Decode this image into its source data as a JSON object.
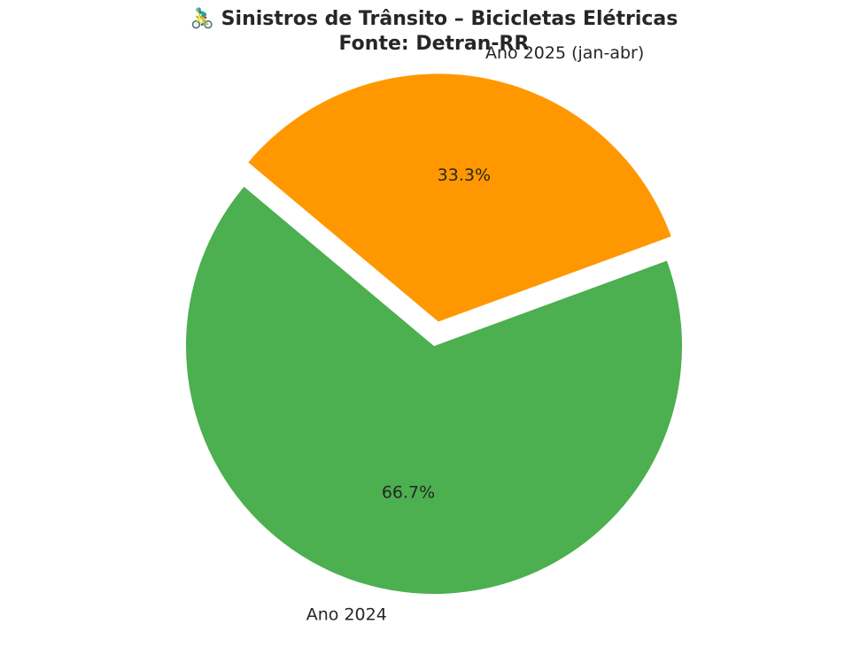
{
  "chart_data": {
    "type": "pie",
    "title_line1": "🚴‍♂️ Sinistros de Trânsito – Bicicletas Elétricas",
    "title_line2": "Fonte: Detran-RR",
    "categories": [
      "Ano 2024",
      "Ano 2025 (jan-abr)"
    ],
    "values": [
      66.7,
      33.3
    ],
    "percent_labels": [
      "66.7%",
      "33.3%"
    ],
    "colors": [
      "#4caf50",
      "#ff9800"
    ],
    "exploded": [
      false,
      true
    ],
    "legend": false
  }
}
